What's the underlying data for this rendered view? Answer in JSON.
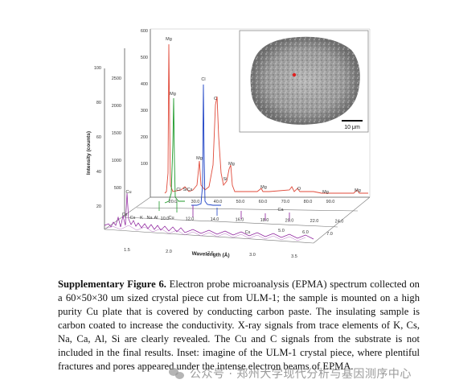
{
  "figure": {
    "y_axis_label": "Intensity (counts)",
    "x_axis_label": "Wavelength (Å)",
    "inset_scalebar": "10 μm",
    "y_ticks_panel1": [
      "20",
      "40",
      "60",
      "80",
      "100"
    ],
    "y_ticks_panel2": [
      "500",
      "1000",
      "1500",
      "2000",
      "2500"
    ],
    "y_ticks_panel3": [
      "100",
      "200",
      "300",
      "400",
      "500",
      "600"
    ],
    "x_ticks_front": [
      "1.5",
      "2.0",
      "2.5",
      "3.0",
      "3.5"
    ],
    "x_ticks_mid": [
      "10.0",
      "12.0",
      "14.0",
      "16.0",
      "18.0",
      "20.0",
      "22.0",
      "24.0"
    ],
    "x_ticks_back": [
      "20.0",
      "30.0",
      "40.0",
      "50.0",
      "60.0",
      "70.0",
      "80.0",
      "90.0"
    ],
    "x_ticks_lower": [
      "5.0",
      "6.0",
      "7.0"
    ],
    "peak_labels": [
      {
        "text": "Mg"
      },
      {
        "text": "Mg"
      },
      {
        "text": "Cl"
      },
      {
        "text": "C"
      },
      {
        "text": "Mg"
      },
      {
        "text": "Si"
      },
      {
        "text": "Mg"
      },
      {
        "text": "Mg"
      },
      {
        "text": "O"
      },
      {
        "text": "Mg"
      },
      {
        "text": "Mg"
      },
      {
        "text": "Cu"
      },
      {
        "text": "Cs"
      },
      {
        "text": "Cs"
      },
      {
        "text": "Cl"
      },
      {
        "text": "Si"
      },
      {
        "text": "Cs"
      },
      {
        "text": "K"
      },
      {
        "text": "Na"
      },
      {
        "text": "Al"
      },
      {
        "text": "Cu"
      },
      {
        "text": "Ca"
      },
      {
        "text": "Cs"
      }
    ],
    "colors": {
      "red_spectrum": "#e04a3a",
      "green_spectrum": "#1f9a2a",
      "blue_spectrum": "#1a3fc4",
      "purple_spectrum": "#8a1a9a"
    }
  },
  "caption": {
    "label": "Supplementary Figure 6.",
    "text": " Electron probe microanalysis (EPMA) spectrum collected on a 60×50×30 um sized crystal piece cut from ULM-1; the sample is mounted on a high purity Cu plate that is covered by conducting carbon paste. The insulating sample is carbon coated to increase the conductivity. X-ray signals from trace elements of K, Cs, Na, Ca, Al, Si are clearly revealed. The Cu and C signals from the substrate is not included in the final results. Inset: imagine of the ULM-1 crystal piece, where plentiful fractures and pores appeared under the intense electron beams of EPMA."
  },
  "watermark": {
    "text": "公众号 · 郑州大学现代分析与基因测序中心"
  }
}
